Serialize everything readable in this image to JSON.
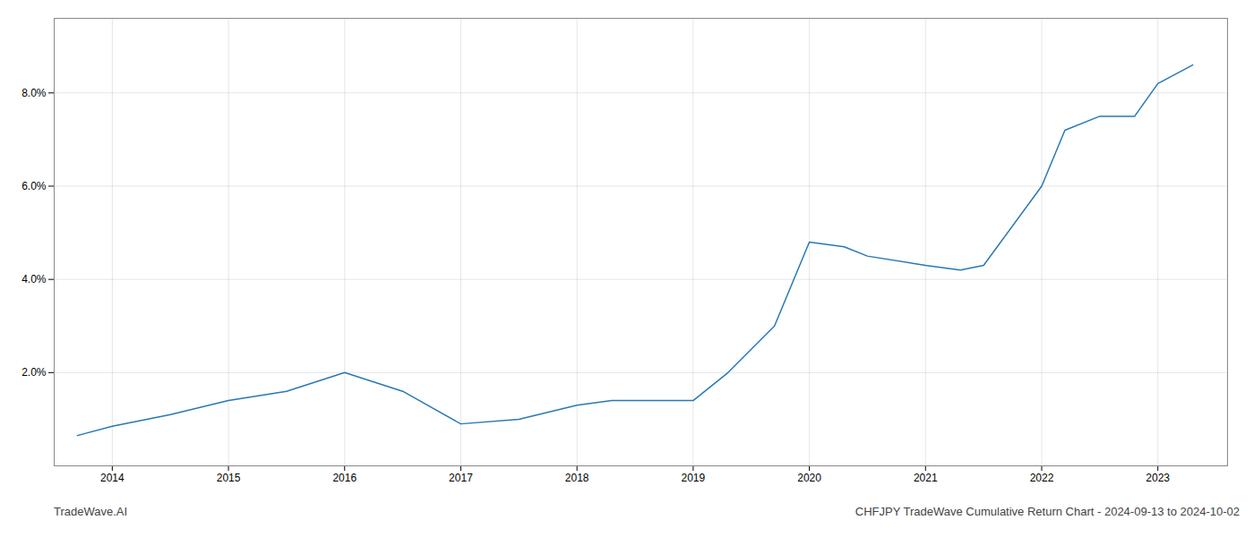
{
  "chart_data": {
    "type": "line",
    "x": [
      2013.7,
      2014.0,
      2014.5,
      2015.0,
      2015.5,
      2016.0,
      2016.5,
      2017.0,
      2017.5,
      2018.0,
      2018.3,
      2019.0,
      2019.3,
      2019.7,
      2020.0,
      2020.3,
      2020.5,
      2021.0,
      2021.3,
      2021.5,
      2022.0,
      2022.2,
      2022.5,
      2022.8,
      2023.0,
      2023.3
    ],
    "values": [
      0.0065,
      0.0085,
      0.011,
      0.014,
      0.016,
      0.02,
      0.016,
      0.009,
      0.01,
      0.013,
      0.014,
      0.014,
      0.02,
      0.03,
      0.048,
      0.047,
      0.045,
      0.043,
      0.042,
      0.043,
      0.06,
      0.072,
      0.075,
      0.075,
      0.082,
      0.086
    ],
    "color": "#2878b5",
    "xlim": [
      2013.5,
      2023.6
    ],
    "ylim": [
      0.0,
      0.096
    ],
    "xticks": [
      2014,
      2015,
      2016,
      2017,
      2018,
      2019,
      2020,
      2021,
      2022,
      2023
    ],
    "yticks": [
      {
        "value": 0.02,
        "label": "2.0%"
      },
      {
        "value": 0.04,
        "label": "4.0%"
      },
      {
        "value": 0.06,
        "label": "6.0%"
      },
      {
        "value": 0.08,
        "label": "8.0%"
      }
    ],
    "grid": true,
    "annotations": [
      "TradeWave.AI",
      "CHFJPY TradeWave Cumulative Return Chart - 2024-09-13 to 2024-10-02"
    ]
  }
}
